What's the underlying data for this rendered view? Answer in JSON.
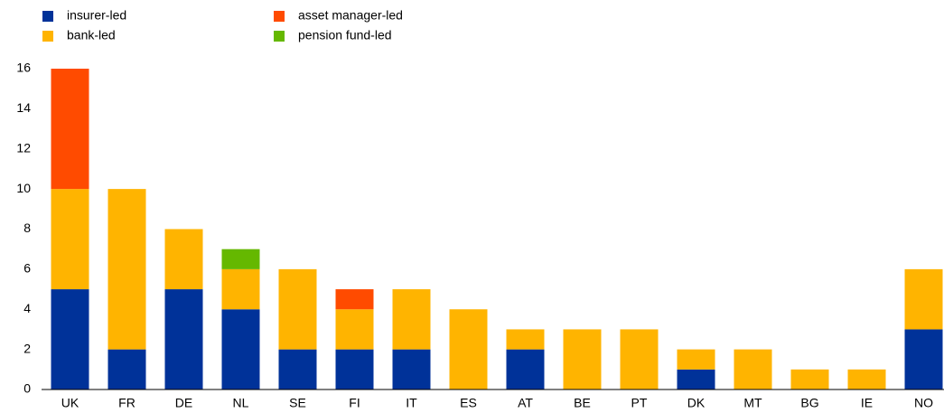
{
  "chart_data": {
    "type": "stacked_bar",
    "categories": [
      "UK",
      "FR",
      "DE",
      "NL",
      "SE",
      "FI",
      "IT",
      "ES",
      "AT",
      "BE",
      "PT",
      "DK",
      "MT",
      "BG",
      "IE",
      "NO"
    ],
    "series": [
      {
        "name": "insurer-led",
        "color": "#003299",
        "values": [
          5,
          2,
          5,
          4,
          2,
          2,
          2,
          0,
          2,
          0,
          0,
          1,
          0,
          0,
          0,
          3
        ]
      },
      {
        "name": "bank-led",
        "color": "#ffb400",
        "values": [
          5,
          8,
          3,
          2,
          4,
          2,
          3,
          4,
          1,
          3,
          3,
          1,
          2,
          1,
          1,
          3
        ]
      },
      {
        "name": "asset manager-led",
        "color": "#ff4b00",
        "values": [
          6,
          0,
          0,
          0,
          0,
          1,
          0,
          0,
          0,
          0,
          0,
          0,
          0,
          0,
          0,
          0
        ]
      },
      {
        "name": "pension fund-led",
        "color": "#65b800",
        "values": [
          0,
          0,
          0,
          1,
          0,
          0,
          0,
          0,
          0,
          0,
          0,
          0,
          0,
          0,
          0,
          0
        ]
      }
    ],
    "ylim": [
      0,
      16
    ],
    "yticks": [
      0,
      2,
      4,
      6,
      8,
      10,
      12,
      14,
      16
    ],
    "grid": false
  }
}
